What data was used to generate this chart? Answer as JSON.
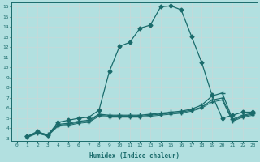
{
  "xlabel": "Humidex (Indice chaleur)",
  "bg_color": "#b2e0e0",
  "grid_color": "#d0e8e8",
  "line_color": "#1a6b6b",
  "xlim": [
    -0.5,
    23.4
  ],
  "ylim": [
    2.8,
    16.4
  ],
  "xticks": [
    0,
    1,
    2,
    3,
    4,
    5,
    6,
    7,
    8,
    9,
    10,
    11,
    12,
    13,
    14,
    15,
    16,
    17,
    18,
    19,
    20,
    21,
    22,
    23
  ],
  "yticks": [
    3,
    4,
    5,
    6,
    7,
    8,
    9,
    10,
    11,
    12,
    13,
    14,
    15,
    16
  ],
  "series": [
    {
      "x": [
        1,
        2,
        3,
        4,
        5,
        6,
        7,
        8,
        9,
        10,
        11,
        12,
        13,
        14,
        15,
        16,
        17,
        18,
        19,
        20,
        21,
        22,
        23
      ],
      "y": [
        3.2,
        3.7,
        3.3,
        4.6,
        4.8,
        5.0,
        5.1,
        5.8,
        9.6,
        12.1,
        12.5,
        13.9,
        14.2,
        16.0,
        16.1,
        15.7,
        13.1,
        10.5,
        7.3,
        5.0,
        5.3,
        5.6,
        5.6
      ],
      "marker": "D",
      "markersize": 2.5,
      "lw": 0.9
    },
    {
      "x": [
        1,
        2,
        3,
        4,
        5,
        6,
        7,
        8,
        9,
        10,
        11,
        12,
        13,
        14,
        15,
        16,
        17,
        18,
        19,
        20,
        21,
        22,
        23
      ],
      "y": [
        3.2,
        3.6,
        3.4,
        4.4,
        4.5,
        4.7,
        4.8,
        5.4,
        5.3,
        5.3,
        5.3,
        5.3,
        5.4,
        5.5,
        5.6,
        5.7,
        5.9,
        6.3,
        7.2,
        7.5,
        4.9,
        5.3,
        5.5
      ],
      "marker": "+",
      "markersize": 4,
      "lw": 0.9
    },
    {
      "x": [
        1,
        2,
        3,
        4,
        5,
        6,
        7,
        8,
        9,
        10,
        11,
        12,
        13,
        14,
        15,
        16,
        17,
        18,
        19,
        20,
        21,
        22,
        23
      ],
      "y": [
        3.15,
        3.55,
        3.3,
        4.3,
        4.4,
        4.6,
        4.7,
        5.3,
        5.2,
        5.2,
        5.2,
        5.2,
        5.3,
        5.4,
        5.5,
        5.6,
        5.8,
        6.1,
        6.8,
        7.0,
        4.8,
        5.2,
        5.4
      ],
      "marker": "+",
      "markersize": 3,
      "lw": 0.8
    },
    {
      "x": [
        1,
        2,
        3,
        4,
        5,
        6,
        7,
        8,
        9,
        10,
        11,
        12,
        13,
        14,
        15,
        16,
        17,
        18,
        19,
        20,
        21,
        22,
        23
      ],
      "y": [
        3.1,
        3.5,
        3.25,
        4.2,
        4.3,
        4.5,
        4.6,
        5.2,
        5.1,
        5.1,
        5.1,
        5.1,
        5.2,
        5.3,
        5.4,
        5.5,
        5.7,
        6.0,
        6.6,
        6.8,
        4.7,
        5.1,
        5.3
      ],
      "marker": "+",
      "markersize": 2.5,
      "lw": 0.7
    }
  ]
}
